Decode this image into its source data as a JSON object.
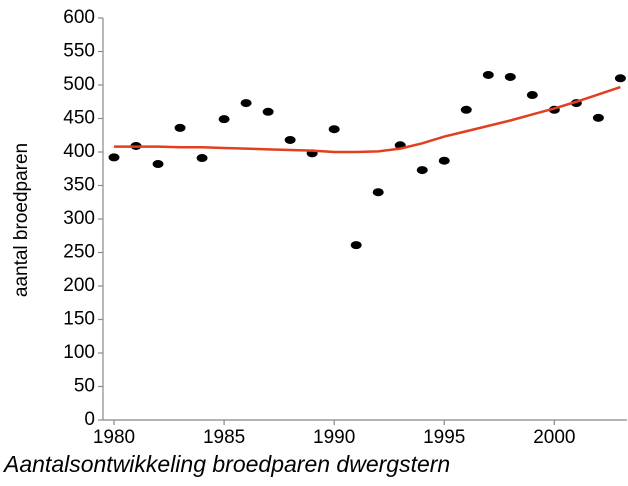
{
  "chart_data": {
    "type": "scatter",
    "title": "Aantalsontwikkeling broedparen dwergstern",
    "ylabel": "aantal broedparen",
    "x": [
      1980,
      1981,
      1982,
      1983,
      1984,
      1985,
      1986,
      1987,
      1988,
      1989,
      1990,
      1991,
      1992,
      1993,
      1994,
      1995,
      1996,
      1997,
      1998,
      1999,
      2000,
      2001,
      2002,
      2003
    ],
    "series": [
      {
        "type": "scatter",
        "color": "#000000",
        "values": [
          392,
          409,
          382,
          436,
          391,
          449,
          473,
          460,
          418,
          398,
          434,
          261,
          340,
          410,
          373,
          387,
          463,
          515,
          512,
          485,
          463,
          473,
          451,
          510
        ]
      },
      {
        "type": "line",
        "color": "#e0401e",
        "values": [
          408,
          408,
          408,
          407,
          407,
          406,
          405,
          404,
          403,
          402,
          400,
          400,
          401,
          405,
          413,
          423,
          431,
          439,
          447,
          456,
          465,
          475,
          486,
          497
        ]
      }
    ],
    "xlim": [
      1979.5,
      2003.3
    ],
    "ylim": [
      0,
      600
    ],
    "xticks": [
      1980,
      1985,
      1990,
      1995,
      2000
    ],
    "yticks": [
      0,
      50,
      100,
      150,
      200,
      250,
      300,
      350,
      400,
      450,
      500,
      550,
      600
    ]
  }
}
